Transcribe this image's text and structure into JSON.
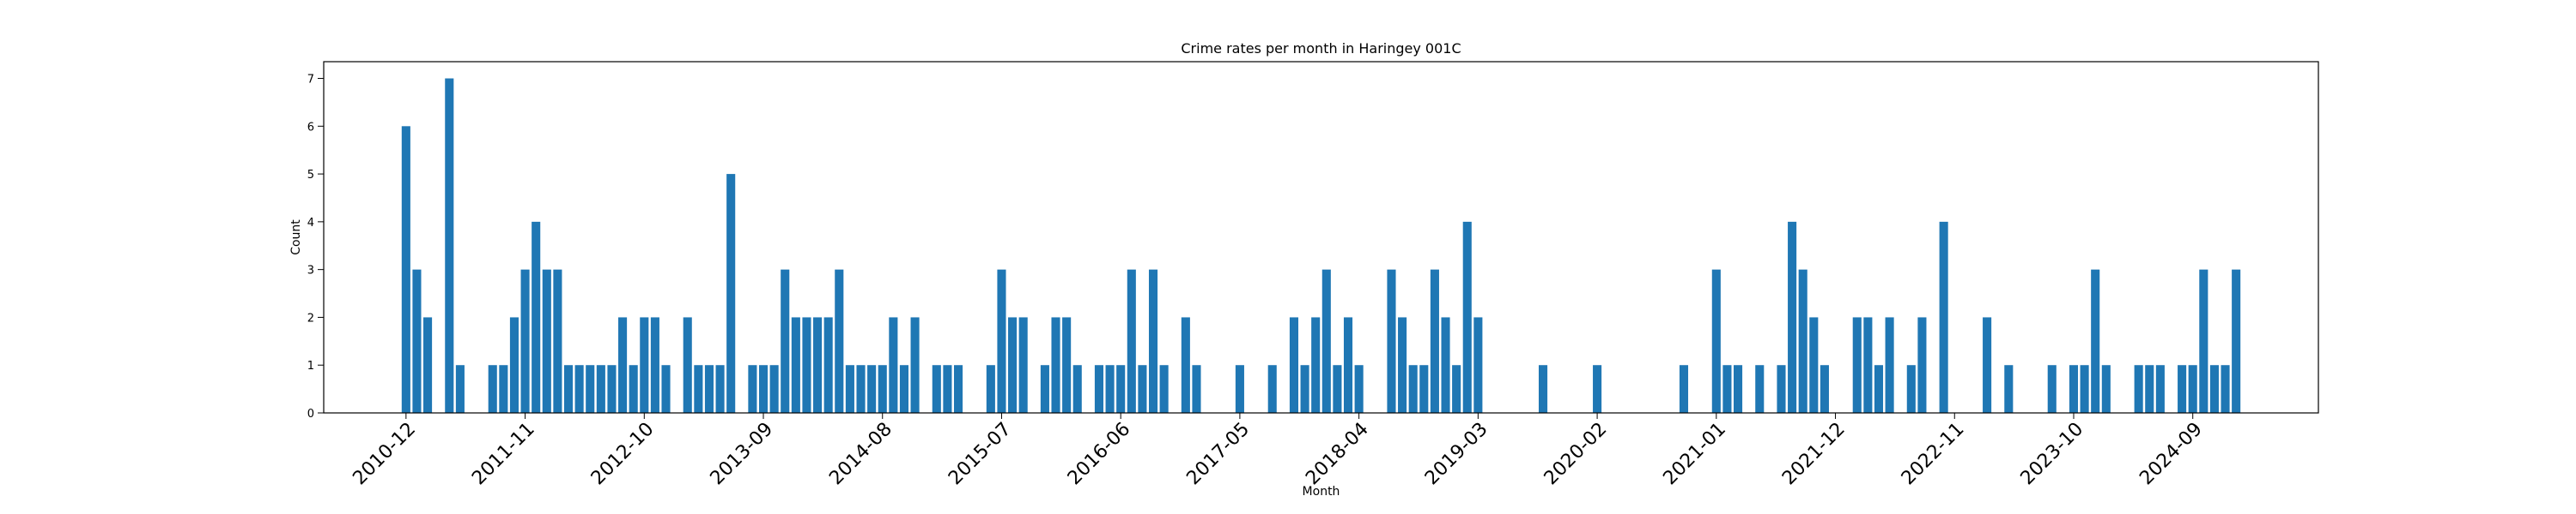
{
  "chart_data": {
    "type": "bar",
    "title": "Crime rates per month in Haringey 001C",
    "xlabel": "Month",
    "ylabel": "Count",
    "ylim": [
      0,
      7.35
    ],
    "yticks": [
      0,
      1,
      2,
      3,
      4,
      5,
      6,
      7
    ],
    "x_tick_labels": [
      "2010-12",
      "2011-11",
      "2012-10",
      "2013-09",
      "2014-08",
      "2015-07",
      "2016-06",
      "2017-05",
      "2018-04",
      "2019-03",
      "2020-02",
      "2021-01",
      "2021-12",
      "2022-11",
      "2023-10",
      "2024-09"
    ],
    "color": "#1f77b4",
    "series": [
      {
        "points": [
          [
            "2010-12",
            6
          ],
          [
            "2011-01",
            3
          ],
          [
            "2011-02",
            2
          ],
          [
            "2011-04",
            7
          ],
          [
            "2011-05",
            1
          ],
          [
            "2011-08",
            1
          ],
          [
            "2011-09",
            1
          ],
          [
            "2011-10",
            2
          ],
          [
            "2011-11",
            3
          ],
          [
            "2011-12",
            4
          ],
          [
            "2012-01",
            3
          ],
          [
            "2012-02",
            3
          ],
          [
            "2012-03",
            1
          ],
          [
            "2012-04",
            1
          ],
          [
            "2012-05",
            1
          ],
          [
            "2012-06",
            1
          ],
          [
            "2012-07",
            1
          ],
          [
            "2012-08",
            2
          ],
          [
            "2012-09",
            1
          ],
          [
            "2012-10",
            2
          ],
          [
            "2012-11",
            2
          ],
          [
            "2012-12",
            1
          ],
          [
            "2013-02",
            2
          ],
          [
            "2013-03",
            1
          ],
          [
            "2013-04",
            1
          ],
          [
            "2013-05",
            1
          ],
          [
            "2013-06",
            5
          ],
          [
            "2013-08",
            1
          ],
          [
            "2013-09",
            1
          ],
          [
            "2013-10",
            1
          ],
          [
            "2013-11",
            3
          ],
          [
            "2013-12",
            2
          ],
          [
            "2014-01",
            2
          ],
          [
            "2014-02",
            2
          ],
          [
            "2014-03",
            2
          ],
          [
            "2014-04",
            3
          ],
          [
            "2014-05",
            1
          ],
          [
            "2014-06",
            1
          ],
          [
            "2014-07",
            1
          ],
          [
            "2014-08",
            1
          ],
          [
            "2014-09",
            2
          ],
          [
            "2014-10",
            1
          ],
          [
            "2014-11",
            2
          ],
          [
            "2015-01",
            1
          ],
          [
            "2015-02",
            1
          ],
          [
            "2015-03",
            1
          ],
          [
            "2015-06",
            1
          ],
          [
            "2015-07",
            3
          ],
          [
            "2015-08",
            2
          ],
          [
            "2015-09",
            2
          ],
          [
            "2015-11",
            1
          ],
          [
            "2015-12",
            2
          ],
          [
            "2016-01",
            2
          ],
          [
            "2016-02",
            1
          ],
          [
            "2016-04",
            1
          ],
          [
            "2016-05",
            1
          ],
          [
            "2016-06",
            1
          ],
          [
            "2016-07",
            3
          ],
          [
            "2016-08",
            1
          ],
          [
            "2016-09",
            3
          ],
          [
            "2016-10",
            1
          ],
          [
            "2016-12",
            2
          ],
          [
            "2017-01",
            1
          ],
          [
            "2017-05",
            1
          ],
          [
            "2017-08",
            1
          ],
          [
            "2017-10",
            2
          ],
          [
            "2017-11",
            1
          ],
          [
            "2017-12",
            2
          ],
          [
            "2018-01",
            3
          ],
          [
            "2018-02",
            1
          ],
          [
            "2018-03",
            2
          ],
          [
            "2018-04",
            1
          ],
          [
            "2018-07",
            3
          ],
          [
            "2018-08",
            2
          ],
          [
            "2018-09",
            1
          ],
          [
            "2018-10",
            1
          ],
          [
            "2018-11",
            3
          ],
          [
            "2018-12",
            2
          ],
          [
            "2019-01",
            1
          ],
          [
            "2019-02",
            4
          ],
          [
            "2019-03",
            2
          ],
          [
            "2019-09",
            1
          ],
          [
            "2020-02",
            1
          ],
          [
            "2020-10",
            1
          ],
          [
            "2021-01",
            3
          ],
          [
            "2021-02",
            1
          ],
          [
            "2021-03",
            1
          ],
          [
            "2021-05",
            1
          ],
          [
            "2021-07",
            1
          ],
          [
            "2021-08",
            4
          ],
          [
            "2021-09",
            3
          ],
          [
            "2021-10",
            2
          ],
          [
            "2021-11",
            1
          ],
          [
            "2022-02",
            2
          ],
          [
            "2022-03",
            2
          ],
          [
            "2022-04",
            1
          ],
          [
            "2022-05",
            2
          ],
          [
            "2022-07",
            1
          ],
          [
            "2022-08",
            2
          ],
          [
            "2022-10",
            4
          ],
          [
            "2023-02",
            2
          ],
          [
            "2023-04",
            1
          ],
          [
            "2023-08",
            1
          ],
          [
            "2023-10",
            1
          ],
          [
            "2023-11",
            1
          ],
          [
            "2023-12",
            3
          ],
          [
            "2024-01",
            1
          ],
          [
            "2024-04",
            1
          ],
          [
            "2024-05",
            1
          ],
          [
            "2024-06",
            1
          ],
          [
            "2024-08",
            1
          ],
          [
            "2024-09",
            1
          ],
          [
            "2024-10",
            3
          ],
          [
            "2024-11",
            1
          ],
          [
            "2024-12",
            1
          ],
          [
            "2025-01",
            3
          ]
        ]
      }
    ],
    "grid": false,
    "legend": "none"
  }
}
